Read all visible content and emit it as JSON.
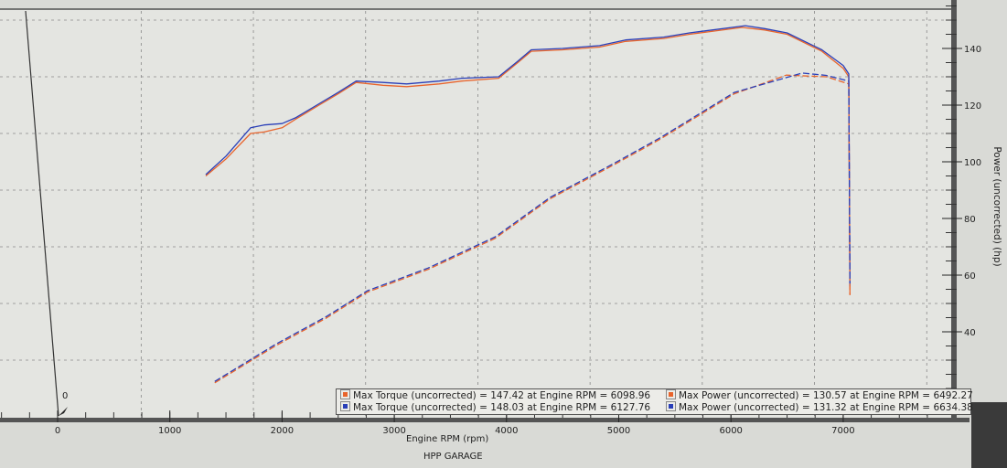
{
  "footer": "HPP GARAGE",
  "chart_data": {
    "type": "line",
    "xlabel": "Engine RPM (rpm)",
    "ylabel": "Power (uncorrected) (hp)",
    "xlim": [
      0,
      7800
    ],
    "ylim": [
      10,
      150
    ],
    "x_ticks": [
      0,
      1000,
      2000,
      3000,
      4000,
      5000,
      6000,
      7000
    ],
    "y_ticks": [
      40,
      60,
      80,
      100,
      120,
      140
    ],
    "left_axis_label": "0",
    "grid": true,
    "legend_position": "bottom-right",
    "colors": {
      "run1": "#e8642c",
      "run2": "#2a3fb8"
    },
    "legend": [
      {
        "text": "Max Torque (uncorrected) = 147.42 at Engine RPM = 6098.96",
        "color": "#e8642c"
      },
      {
        "text": "Max Power (uncorrected) = 130.57 at Engine RPM = 6492.27",
        "color": "#e8642c"
      },
      {
        "text": "Max Torque (uncorrected) = 148.03 at Engine RPM = 6127.76",
        "color": "#2a3fb8"
      },
      {
        "text": "Max Power (uncorrected) = 131.32 at Engine RPM = 6634.38",
        "color": "#2a3fb8"
      }
    ],
    "series": [
      {
        "kind": "torque",
        "run": "run1",
        "style": "solid",
        "x": [
          1320,
          1500,
          1720,
          1840,
          2000,
          2120,
          2330,
          2500,
          2660,
          2900,
          3110,
          3400,
          3600,
          3930,
          4100,
          4220,
          4500,
          4830,
          5060,
          5400,
          5630,
          6099,
          6300,
          6500,
          6810,
          7000,
          7050,
          7060
        ],
        "y": [
          95,
          101,
          110,
          110.5,
          112,
          115,
          120,
          124,
          128,
          127,
          126.5,
          127.5,
          128.5,
          129.5,
          135,
          139,
          139.5,
          140.5,
          142.5,
          143.5,
          145,
          147.42,
          146.5,
          145,
          139,
          133,
          130,
          53
        ]
      },
      {
        "kind": "torque",
        "run": "run2",
        "style": "solid",
        "x": [
          1320,
          1500,
          1720,
          1840,
          2000,
          2120,
          2330,
          2500,
          2660,
          2900,
          3110,
          3400,
          3600,
          3930,
          4100,
          4220,
          4500,
          4830,
          5060,
          5400,
          5630,
          6128,
          6300,
          6500,
          6810,
          7000,
          7050,
          7060
        ],
        "y": [
          95.5,
          102,
          112,
          113,
          113.5,
          115.5,
          120.5,
          124.5,
          128.5,
          128,
          127.5,
          128.5,
          129.5,
          130,
          135.5,
          139.5,
          140,
          141,
          143,
          144,
          145.5,
          148.03,
          147,
          145.5,
          139.5,
          134,
          131,
          56
        ]
      },
      {
        "kind": "power",
        "run": "run1",
        "style": "dashed",
        "x": [
          1400,
          1940,
          2400,
          2760,
          3300,
          3900,
          4390,
          4960,
          5370,
          6030,
          6492,
          6850,
          7050,
          7060
        ],
        "y": [
          22,
          35,
          45,
          54,
          62,
          73,
          87,
          99,
          108,
          124,
          130.57,
          130,
          127.5,
          53
        ]
      },
      {
        "kind": "power",
        "run": "run2",
        "style": "dashed",
        "x": [
          1400,
          1940,
          2400,
          2760,
          3300,
          3900,
          4390,
          4960,
          5370,
          6030,
          6634,
          6850,
          7050,
          7060
        ],
        "y": [
          22.5,
          35.5,
          45.5,
          54.5,
          62.5,
          73.5,
          87.5,
          99.5,
          108.5,
          124.5,
          131.32,
          130.5,
          128.5,
          57
        ]
      }
    ]
  }
}
